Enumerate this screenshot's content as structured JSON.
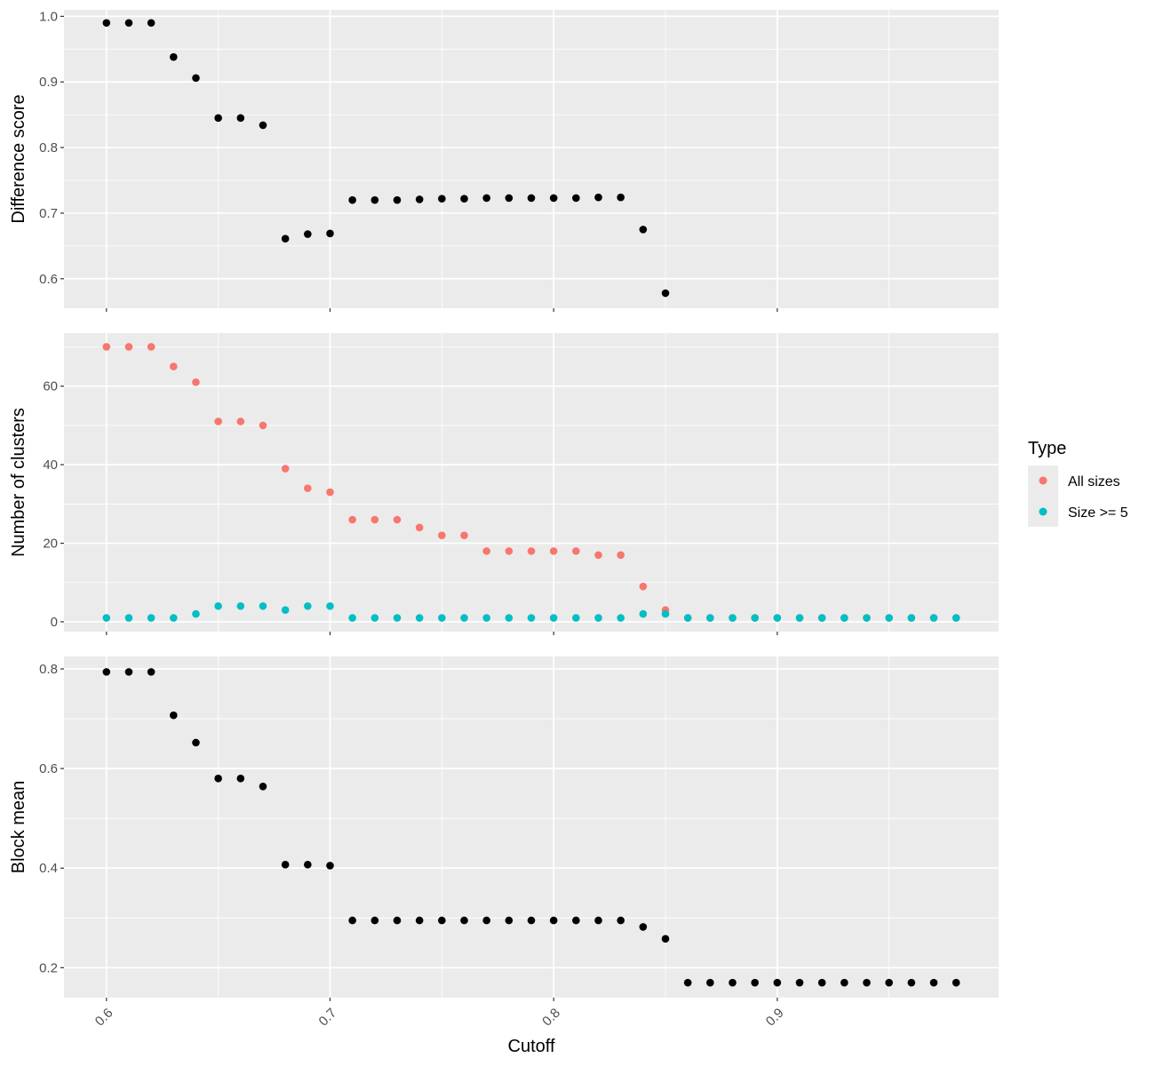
{
  "chart_data": {
    "type": "scatter",
    "xlabel": "Cutoff",
    "xlim": [
      0.581,
      0.999
    ],
    "x_ticks": [
      0.6,
      0.7,
      0.8,
      0.9
    ],
    "x_tick_labels": [
      "0.6",
      "0.7",
      "0.8",
      "0.9"
    ],
    "x": [
      0.6,
      0.61,
      0.62,
      0.63,
      0.64,
      0.65,
      0.66,
      0.67,
      0.68,
      0.69,
      0.7,
      0.71,
      0.72,
      0.73,
      0.74,
      0.75,
      0.76,
      0.77,
      0.78,
      0.79,
      0.8,
      0.81,
      0.82,
      0.83,
      0.84,
      0.85,
      0.86,
      0.87,
      0.88,
      0.89,
      0.9,
      0.91,
      0.92,
      0.93,
      0.94,
      0.95,
      0.96,
      0.97,
      0.98
    ],
    "panels": [
      {
        "ylabel": "Difference score",
        "ylim": [
          0.555,
          1.01
        ],
        "y_ticks": [
          0.6,
          0.7,
          0.8,
          0.9,
          1.0
        ],
        "y_tick_labels": [
          "0.6",
          "0.7",
          "0.8",
          "0.9",
          "1.0"
        ],
        "series": [
          {
            "name": "Difference score",
            "color": "#000000",
            "values": [
              0.99,
              0.99,
              0.99,
              0.938,
              0.906,
              0.845,
              0.845,
              0.834,
              0.661,
              0.668,
              0.669,
              0.72,
              0.72,
              0.72,
              0.721,
              0.722,
              0.722,
              0.723,
              0.723,
              0.723,
              0.723,
              0.723,
              0.724,
              0.724,
              0.675,
              0.578,
              null,
              null,
              null,
              null,
              null,
              null,
              null,
              null,
              null,
              null,
              null,
              null,
              null
            ]
          }
        ]
      },
      {
        "ylabel": "Number of clusters",
        "ylim": [
          -2.5,
          73.5
        ],
        "y_ticks": [
          0,
          20,
          40,
          60
        ],
        "y_tick_labels": [
          "0",
          "20",
          "40",
          "60"
        ],
        "series": [
          {
            "name": "All sizes",
            "color": "#F8766D",
            "values": [
              70,
              70,
              70,
              65,
              61,
              51,
              51,
              50,
              39,
              34,
              33,
              26,
              26,
              26,
              24,
              22,
              22,
              18,
              18,
              18,
              18,
              18,
              17,
              17,
              9,
              3,
              1,
              1,
              1,
              1,
              1,
              1,
              1,
              1,
              1,
              1,
              1,
              1,
              1
            ]
          },
          {
            "name": "Size >= 5",
            "color": "#00BFC4",
            "values": [
              1,
              1,
              1,
              1,
              2,
              4,
              4,
              4,
              3,
              4,
              4,
              1,
              1,
              1,
              1,
              1,
              1,
              1,
              1,
              1,
              1,
              1,
              1,
              1,
              2,
              2,
              1,
              1,
              1,
              1,
              1,
              1,
              1,
              1,
              1,
              1,
              1,
              1,
              1
            ]
          }
        ]
      },
      {
        "ylabel": "Block mean",
        "ylim": [
          0.14,
          0.825
        ],
        "y_ticks": [
          0.2,
          0.4,
          0.6,
          0.8
        ],
        "y_tick_labels": [
          "0.2",
          "0.4",
          "0.6",
          "0.8"
        ],
        "series": [
          {
            "name": "Block mean",
            "color": "#000000",
            "values": [
              0.794,
              0.794,
              0.794,
              0.707,
              0.652,
              0.58,
              0.58,
              0.564,
              0.407,
              0.407,
              0.405,
              0.295,
              0.295,
              0.295,
              0.295,
              0.295,
              0.295,
              0.295,
              0.295,
              0.295,
              0.295,
              0.295,
              0.295,
              0.295,
              0.282,
              0.258,
              0.17,
              0.17,
              0.17,
              0.17,
              0.17,
              0.17,
              0.17,
              0.17,
              0.17,
              0.17,
              0.17,
              0.17,
              0.17
            ]
          }
        ]
      }
    ],
    "legend": {
      "title": "Type",
      "items": [
        {
          "label": "All sizes",
          "color": "#F8766D"
        },
        {
          "label": "Size >= 5",
          "color": "#00BFC4"
        }
      ]
    }
  }
}
